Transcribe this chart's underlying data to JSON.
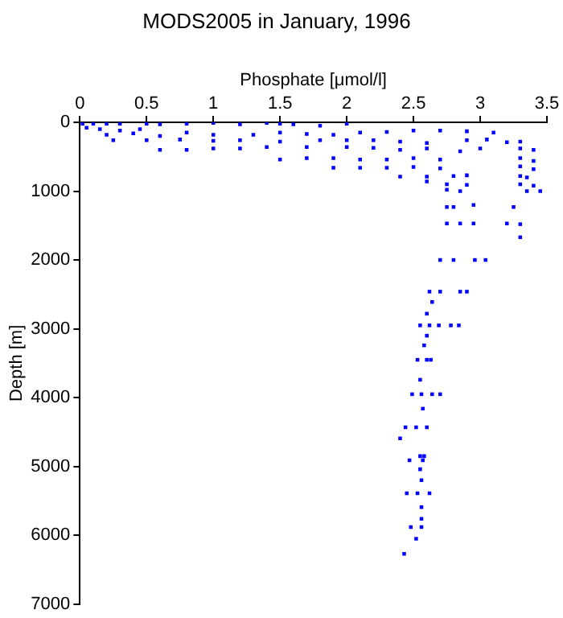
{
  "chart_data": {
    "type": "scatter",
    "title": "MODS2005 in January, 1996",
    "xlabel": "Phosphate [μmol/l]",
    "ylabel": "Depth [m]",
    "xlim": [
      0,
      3.5
    ],
    "xticks": [
      0,
      0.5,
      1,
      1.5,
      2,
      2.5,
      3,
      3.5
    ],
    "ylim": [
      7000,
      0
    ],
    "yticks": [
      0,
      1000,
      2000,
      3000,
      4000,
      5000,
      6000,
      7000
    ],
    "grid": false,
    "legend": false,
    "marker": "square",
    "series": [
      {
        "color": "#0000ff",
        "x": [
          0.02,
          0.1,
          0.2,
          0.3,
          0.5,
          0.6,
          0.8,
          1.0,
          1.2,
          1.4,
          1.5,
          1.6,
          1.8,
          2.0,
          0.05,
          0.15,
          0.3,
          0.45,
          0.2,
          0.4,
          0.6,
          0.8,
          1.0,
          1.3,
          1.5,
          1.7,
          1.9,
          2.1,
          2.3,
          2.5,
          2.7,
          2.9,
          3.1,
          0.25,
          0.5,
          0.75,
          1.0,
          1.2,
          1.5,
          1.8,
          2.0,
          2.2,
          2.4,
          2.6,
          2.9,
          3.05,
          3.2,
          3.3,
          0.6,
          0.8,
          1.0,
          1.2,
          1.4,
          1.7,
          2.0,
          2.2,
          2.4,
          2.6,
          2.85,
          3.0,
          3.3,
          3.4,
          1.5,
          1.7,
          1.9,
          2.1,
          2.3,
          2.5,
          2.7,
          3.3,
          3.4,
          1.9,
          2.1,
          2.3,
          2.5,
          2.7,
          3.3,
          3.4,
          2.4,
          2.6,
          2.8,
          2.9,
          3.3,
          3.35,
          2.6,
          2.75,
          2.9,
          3.3,
          3.4,
          2.75,
          2.85,
          3.35,
          3.45,
          2.75,
          2.8,
          2.95,
          3.25,
          2.75,
          2.85,
          2.95,
          3.2,
          3.3,
          3.3,
          2.7,
          2.8,
          2.96,
          3.04,
          2.62,
          2.7,
          2.85,
          2.9,
          2.64,
          2.6,
          2.55,
          2.62,
          2.69,
          2.78,
          2.84,
          2.6,
          2.58,
          2.53,
          2.6,
          2.63,
          2.55,
          2.49,
          2.56,
          2.64,
          2.7,
          2.57,
          2.44,
          2.52,
          2.6,
          2.4,
          2.55,
          2.58,
          2.47,
          2.57,
          2.55,
          2.56,
          2.45,
          2.53,
          2.62,
          2.56,
          2.56,
          2.48,
          2.56,
          2.52,
          2.43
        ],
        "values": [
          20,
          20,
          20,
          20,
          20,
          30,
          20,
          10,
          30,
          10,
          20,
          30,
          50,
          20,
          80,
          100,
          120,
          100,
          180,
          160,
          200,
          150,
          180,
          180,
          150,
          170,
          180,
          150,
          140,
          120,
          120,
          130,
          150,
          260,
          260,
          250,
          270,
          260,
          280,
          260,
          260,
          260,
          280,
          300,
          260,
          250,
          290,
          280,
          400,
          400,
          380,
          380,
          360,
          360,
          360,
          370,
          400,
          380,
          420,
          380,
          380,
          400,
          540,
          520,
          520,
          540,
          540,
          520,
          540,
          520,
          560,
          660,
          660,
          660,
          650,
          670,
          640,
          680,
          790,
          790,
          780,
          770,
          780,
          800,
          860,
          900,
          910,
          900,
          920,
          980,
          1000,
          1000,
          1000,
          1230,
          1230,
          1200,
          1230,
          1470,
          1470,
          1470,
          1470,
          1480,
          1670,
          2000,
          2000,
          2000,
          2000,
          2460,
          2460,
          2460,
          2460,
          2610,
          2780,
          2950,
          2950,
          2950,
          2950,
          2950,
          3100,
          3240,
          3450,
          3450,
          3450,
          3740,
          3950,
          3950,
          3950,
          3950,
          4160,
          4430,
          4430,
          4430,
          4590,
          4850,
          4850,
          4910,
          4910,
          5040,
          5200,
          5390,
          5390,
          5390,
          5590,
          5760,
          5880,
          5880,
          6050,
          6270
        ]
      }
    ]
  }
}
